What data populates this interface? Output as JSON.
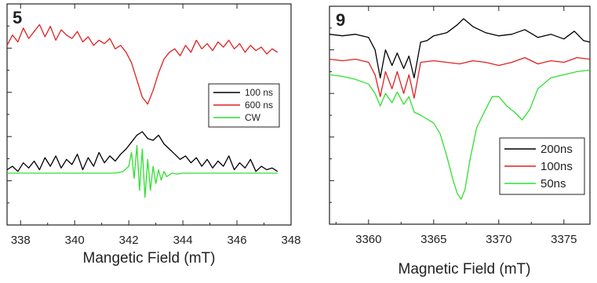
{
  "chart_data": [
    {
      "type": "line",
      "panel_label": "5",
      "xlabel": "Mangetic Field (mT)",
      "ylabel": "",
      "xlim": [
        337.5,
        348
      ],
      "xticks": [
        338,
        340,
        342,
        344,
        346,
        348
      ],
      "grid": false,
      "legend_position": "middle-right",
      "series": [
        {
          "name": "100 ns",
          "color": "#000000",
          "x": [
            337.5,
            337.7,
            337.9,
            338.1,
            338.3,
            338.5,
            338.7,
            338.9,
            339.1,
            339.3,
            339.5,
            339.7,
            339.9,
            340.1,
            340.3,
            340.5,
            340.7,
            340.9,
            341.1,
            341.3,
            341.5,
            341.7,
            341.9,
            342.1,
            342.3,
            342.5,
            342.7,
            342.9,
            343.1,
            343.3,
            343.5,
            343.7,
            343.9,
            344.1,
            344.3,
            344.5,
            344.7,
            344.9,
            345.1,
            345.3,
            345.5,
            345.7,
            345.9,
            346.1,
            346.3,
            346.5,
            346.7,
            346.9,
            347.1,
            347.3,
            347.5
          ],
          "y": [
            0.1,
            0.12,
            0.09,
            0.14,
            0.11,
            0.15,
            0.1,
            0.17,
            0.12,
            0.18,
            0.11,
            0.16,
            0.13,
            0.19,
            0.1,
            0.17,
            0.12,
            0.2,
            0.14,
            0.18,
            0.15,
            0.19,
            0.22,
            0.26,
            0.3,
            0.32,
            0.28,
            0.27,
            0.3,
            0.25,
            0.22,
            0.19,
            0.16,
            0.18,
            0.14,
            0.17,
            0.12,
            0.16,
            0.11,
            0.15,
            0.12,
            0.18,
            0.1,
            0.14,
            0.11,
            0.16,
            0.09,
            0.12,
            0.1,
            0.11,
            0.09
          ]
        },
        {
          "name": "600 ns",
          "color": "#e02020",
          "x": [
            337.5,
            337.7,
            337.9,
            338.1,
            338.3,
            338.5,
            338.7,
            338.9,
            339.1,
            339.3,
            339.5,
            339.7,
            339.9,
            340.1,
            340.3,
            340.5,
            340.7,
            340.9,
            341.1,
            341.3,
            341.5,
            341.7,
            341.9,
            342.1,
            342.3,
            342.5,
            342.7,
            342.9,
            343.1,
            343.3,
            343.5,
            343.7,
            343.9,
            344.1,
            344.3,
            344.5,
            344.7,
            344.9,
            345.1,
            345.3,
            345.5,
            345.7,
            345.9,
            346.1,
            346.3,
            346.5,
            346.7,
            346.9,
            347.1,
            347.3,
            347.5
          ],
          "y": [
            0.82,
            0.88,
            0.84,
            0.92,
            0.86,
            0.9,
            0.94,
            0.87,
            0.93,
            0.85,
            0.91,
            0.88,
            0.86,
            0.9,
            0.84,
            0.87,
            0.82,
            0.85,
            0.83,
            0.86,
            0.8,
            0.82,
            0.78,
            0.72,
            0.62,
            0.52,
            0.48,
            0.56,
            0.66,
            0.74,
            0.78,
            0.8,
            0.76,
            0.82,
            0.78,
            0.85,
            0.8,
            0.83,
            0.79,
            0.84,
            0.81,
            0.85,
            0.8,
            0.83,
            0.78,
            0.82,
            0.79,
            0.81,
            0.77,
            0.8,
            0.78
          ]
        },
        {
          "name": "CW",
          "color": "#2fe02f",
          "x": [
            337.5,
            338.0,
            338.5,
            339.0,
            339.5,
            340.0,
            340.5,
            341.0,
            341.5,
            341.8,
            342.0,
            342.1,
            342.2,
            342.3,
            342.4,
            342.5,
            342.6,
            342.7,
            342.8,
            342.9,
            343.0,
            343.1,
            343.2,
            343.3,
            343.4,
            343.6,
            343.8,
            344.0,
            344.5,
            345.0,
            345.5,
            346.0,
            346.5,
            347.0,
            347.5
          ],
          "y": [
            0.08,
            0.08,
            0.08,
            0.08,
            0.08,
            0.08,
            0.08,
            0.08,
            0.08,
            0.09,
            0.12,
            0.2,
            0.05,
            0.24,
            -0.02,
            0.22,
            -0.06,
            0.16,
            -0.02,
            0.12,
            0.02,
            0.1,
            0.04,
            0.09,
            0.06,
            0.08,
            0.075,
            0.08,
            0.08,
            0.08,
            0.08,
            0.08,
            0.08,
            0.08,
            0.08
          ]
        }
      ]
    },
    {
      "type": "line",
      "panel_label": "9",
      "xlabel": "Magnetic Field (mT)",
      "ylabel": "",
      "xlim": [
        3357,
        3377
      ],
      "xticks": [
        3360,
        3365,
        3370,
        3375
      ],
      "grid": false,
      "legend_position": "bottom-right",
      "series": [
        {
          "name": "200ns",
          "color": "#000000",
          "x": [
            3357,
            3358,
            3359,
            3360,
            3360.5,
            3360.9,
            3361.3,
            3361.8,
            3362.2,
            3362.7,
            3363.1,
            3363.5,
            3364,
            3364.5,
            3365,
            3366,
            3366.8,
            3367.3,
            3368,
            3369,
            3370,
            3371,
            3372,
            3373,
            3374,
            3375,
            3375.8,
            3376.5,
            3377
          ],
          "y": [
            0.9,
            0.89,
            0.9,
            0.88,
            0.8,
            0.62,
            0.8,
            0.7,
            0.78,
            0.68,
            0.76,
            0.62,
            0.85,
            0.86,
            0.89,
            0.91,
            0.96,
            1.0,
            0.95,
            0.91,
            0.89,
            0.9,
            0.93,
            0.88,
            0.9,
            0.87,
            0.92,
            0.86,
            0.85
          ]
        },
        {
          "name": "100ns",
          "color": "#e02020",
          "x": [
            3357,
            3358,
            3359,
            3360,
            3360.5,
            3360.9,
            3361.3,
            3361.8,
            3362.2,
            3362.7,
            3363.1,
            3363.5,
            3364,
            3365,
            3366,
            3367,
            3368,
            3369,
            3370,
            3371,
            3372,
            3373,
            3374,
            3375,
            3376,
            3377
          ],
          "y": [
            0.74,
            0.73,
            0.74,
            0.72,
            0.64,
            0.5,
            0.66,
            0.55,
            0.66,
            0.52,
            0.64,
            0.49,
            0.72,
            0.73,
            0.72,
            0.71,
            0.73,
            0.72,
            0.7,
            0.72,
            0.75,
            0.71,
            0.73,
            0.72,
            0.75,
            0.74
          ]
        },
        {
          "name": "50ns",
          "color": "#2fe02f",
          "x": [
            3357,
            3358,
            3359,
            3360,
            3360.5,
            3360.9,
            3361.3,
            3361.8,
            3362.2,
            3362.7,
            3363.1,
            3363.5,
            3364,
            3365,
            3365.5,
            3366,
            3366.5,
            3366.8,
            3367.1,
            3367.4,
            3367.8,
            3368.3,
            3369,
            3369.5,
            3370,
            3370.6,
            3371.2,
            3371.8,
            3372.4,
            3373,
            3374,
            3375,
            3376,
            3377
          ],
          "y": [
            0.64,
            0.63,
            0.61,
            0.58,
            0.52,
            0.44,
            0.52,
            0.46,
            0.53,
            0.45,
            0.5,
            0.4,
            0.38,
            0.33,
            0.26,
            0.12,
            -0.04,
            -0.12,
            -0.16,
            -0.1,
            0.1,
            0.3,
            0.42,
            0.5,
            0.5,
            0.44,
            0.4,
            0.35,
            0.42,
            0.55,
            0.62,
            0.64,
            0.66,
            0.67
          ]
        }
      ]
    }
  ]
}
